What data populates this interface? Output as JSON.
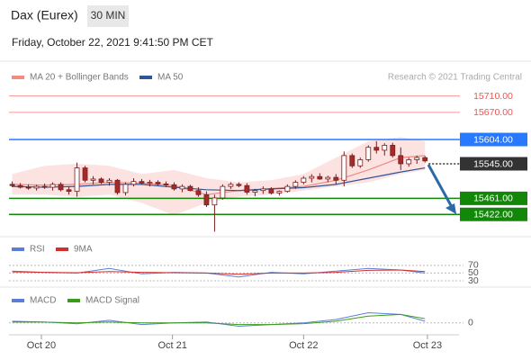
{
  "header": {
    "title": "Dax (Eurex)",
    "interval": "30 MIN",
    "datetime": "Friday, October 22, 2021 9:41:50 PM CET"
  },
  "chart_data": [
    {
      "type": "candlestick",
      "credit": "Research © 2021 Trading Central",
      "xlim": [
        -0.4,
        55.2
      ],
      "ylim": [
        15370,
        15790
      ],
      "xticks": [
        {
          "value": 3.6,
          "label": "Oct 20"
        },
        {
          "value": 19.8,
          "label": "Oct 21"
        },
        {
          "value": 36,
          "label": "Oct 22"
        },
        {
          "value": 51.3,
          "label": "Oct 23"
        }
      ],
      "up_color": "#ffffff",
      "down_color": "#a52a2a",
      "wick_color": "#7a1f1f",
      "open": [
        15495,
        15492,
        15488,
        15486,
        15490,
        15488,
        15495,
        15482,
        15478,
        15535,
        15505,
        15508,
        15500,
        15505,
        15475,
        15495,
        15502,
        15498,
        15500,
        15496,
        15494,
        15484,
        15490,
        15480,
        15470,
        15445,
        15462,
        15490,
        15495,
        15492,
        15476,
        15480,
        15484,
        15474,
        15478,
        15490,
        15500,
        15510,
        15514,
        15508,
        15512,
        15505,
        15565,
        15540,
        15555,
        15585,
        15578,
        15590,
        15565,
        15545,
        15555,
        15560
      ],
      "high": [
        15502,
        15498,
        15495,
        15494,
        15497,
        15500,
        15500,
        15490,
        15548,
        15540,
        15515,
        15512,
        15510,
        15508,
        15500,
        15510,
        15508,
        15506,
        15505,
        15502,
        15500,
        15495,
        15494,
        15488,
        15478,
        15470,
        15495,
        15500,
        15500,
        15498,
        15484,
        15490,
        15488,
        15480,
        15495,
        15505,
        15515,
        15520,
        15522,
        15516,
        15520,
        15575,
        15570,
        15560,
        15590,
        15600,
        15595,
        15596,
        15585,
        15560,
        15565,
        15564
      ],
      "low": [
        15488,
        15485,
        15482,
        15480,
        15484,
        15480,
        15478,
        15470,
        15465,
        15500,
        15495,
        15496,
        15492,
        15470,
        15468,
        15490,
        15494,
        15490,
        15492,
        15488,
        15480,
        15476,
        15478,
        15465,
        15440,
        15380,
        15458,
        15484,
        15488,
        15470,
        15466,
        15472,
        15470,
        15468,
        15475,
        15484,
        15495,
        15500,
        15506,
        15500,
        15495,
        15490,
        15535,
        15535,
        15550,
        15570,
        15565,
        15560,
        15530,
        15538,
        15545,
        15548
      ],
      "close": [
        15492,
        15488,
        15486,
        15490,
        15488,
        15495,
        15482,
        15478,
        15535,
        15505,
        15508,
        15500,
        15505,
        15475,
        15495,
        15502,
        15498,
        15500,
        15496,
        15494,
        15484,
        15490,
        15480,
        15470,
        15445,
        15462,
        15490,
        15495,
        15492,
        15476,
        15480,
        15484,
        15474,
        15478,
        15490,
        15500,
        15510,
        15514,
        15508,
        15512,
        15505,
        15565,
        15540,
        15555,
        15585,
        15578,
        15590,
        15565,
        15545,
        15555,
        15560,
        15552
      ],
      "overlays": [
        {
          "name": "MA 20 + Bollinger Bands",
          "color": "#f28b82",
          "x": [
            0,
            4,
            8,
            12,
            16,
            20,
            24,
            28,
            32,
            36,
            40,
            44,
            48,
            51
          ],
          "values": [
            15495,
            15493,
            15495,
            15500,
            15498,
            15492,
            15470,
            15480,
            15485,
            15490,
            15505,
            15530,
            15560,
            15565
          ],
          "upper": [
            15520,
            15540,
            15545,
            15540,
            15520,
            15530,
            15510,
            15500,
            15505,
            15520,
            15560,
            15600,
            15610,
            15600
          ],
          "lower": [
            15470,
            15470,
            15465,
            15470,
            15450,
            15420,
            15450,
            15465,
            15470,
            15480,
            15490,
            15500,
            15520,
            15530
          ]
        },
        {
          "name": "MA 50",
          "color": "#2f5597",
          "x": [
            0,
            4,
            8,
            12,
            16,
            20,
            24,
            28,
            32,
            36,
            40,
            44,
            48,
            51
          ],
          "values": [
            15490,
            15488,
            15490,
            15495,
            15495,
            15488,
            15482,
            15480,
            15484,
            15487,
            15495,
            15510,
            15525,
            15535
          ]
        }
      ],
      "levels": [
        {
          "value": 15710,
          "label": "15710.00",
          "color": "#ef5350",
          "box": false,
          "style": "solid"
        },
        {
          "value": 15670,
          "label": "15670.00",
          "color": "#ef5350",
          "box": false,
          "style": "solid"
        },
        {
          "value": 15604,
          "label": "15604.00",
          "color": "#2979ff",
          "box": true,
          "style": "solid"
        },
        {
          "value": 15545,
          "label": "15545.00",
          "color": "#333333",
          "box": true,
          "style": "dotted"
        },
        {
          "value": 15461,
          "label": "15461.00",
          "color": "#138808",
          "box": true,
          "style": "solid"
        },
        {
          "value": 15422,
          "label": "15422.00",
          "color": "#138808",
          "box": true,
          "style": "solid"
        }
      ]
    },
    {
      "type": "line",
      "xlim": [
        -0.4,
        55.2
      ],
      "ylim": [
        16,
        86
      ],
      "yticks": [
        70,
        50,
        30
      ],
      "x": [
        0,
        4,
        8,
        12,
        16,
        20,
        24,
        28,
        32,
        36,
        40,
        44,
        48,
        51
      ],
      "series": [
        {
          "name": "RSI",
          "color": "#5b7fd6",
          "values": [
            55,
            52,
            50,
            62,
            48,
            52,
            50,
            40,
            52,
            48,
            55,
            62,
            58,
            50
          ]
        },
        {
          "name": "9MA",
          "color": "#d32f2f",
          "values": [
            53,
            52,
            51,
            54,
            52,
            51,
            50,
            47,
            50,
            50,
            52,
            57,
            58,
            54
          ]
        }
      ]
    },
    {
      "type": "line",
      "xlim": [
        -0.4,
        55.2
      ],
      "ylim": [
        -12,
        20
      ],
      "yticks": [
        0
      ],
      "x": [
        0,
        4,
        8,
        12,
        16,
        20,
        24,
        28,
        32,
        36,
        40,
        44,
        48,
        51
      ],
      "series": [
        {
          "name": "MACD",
          "color": "#5b7fd6",
          "values": [
            2,
            1,
            -1,
            3,
            -2,
            0,
            1,
            -4,
            -2,
            0,
            4,
            12,
            10,
            2
          ]
        },
        {
          "name": "MACD Signal",
          "color": "#3a9a1a",
          "values": [
            1,
            1,
            0,
            1,
            0,
            0,
            0,
            -2,
            -2,
            -1,
            2,
            8,
            10,
            5
          ]
        }
      ]
    }
  ]
}
